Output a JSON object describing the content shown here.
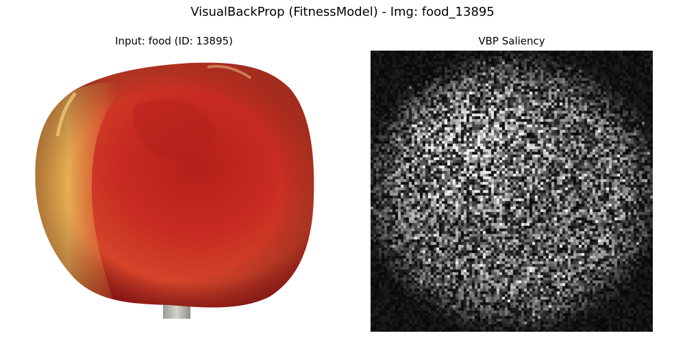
{
  "figure": {
    "title": "VisualBackProp (FitnessModel) - Img: food_13895"
  },
  "panels": {
    "input": {
      "title": "Input: food (ID: 13895)",
      "image_subject": "red-apple-photo"
    },
    "saliency": {
      "title": "VBP Saliency",
      "colormap": "grayscale"
    }
  },
  "colors": {
    "background": "#ffffff",
    "apple_red": "#c9261e",
    "apple_yellow": "#e2a84a",
    "stem_gray": "#b9b9b0",
    "saliency_background": "#050505",
    "saliency_high": "#f2f2f2"
  }
}
